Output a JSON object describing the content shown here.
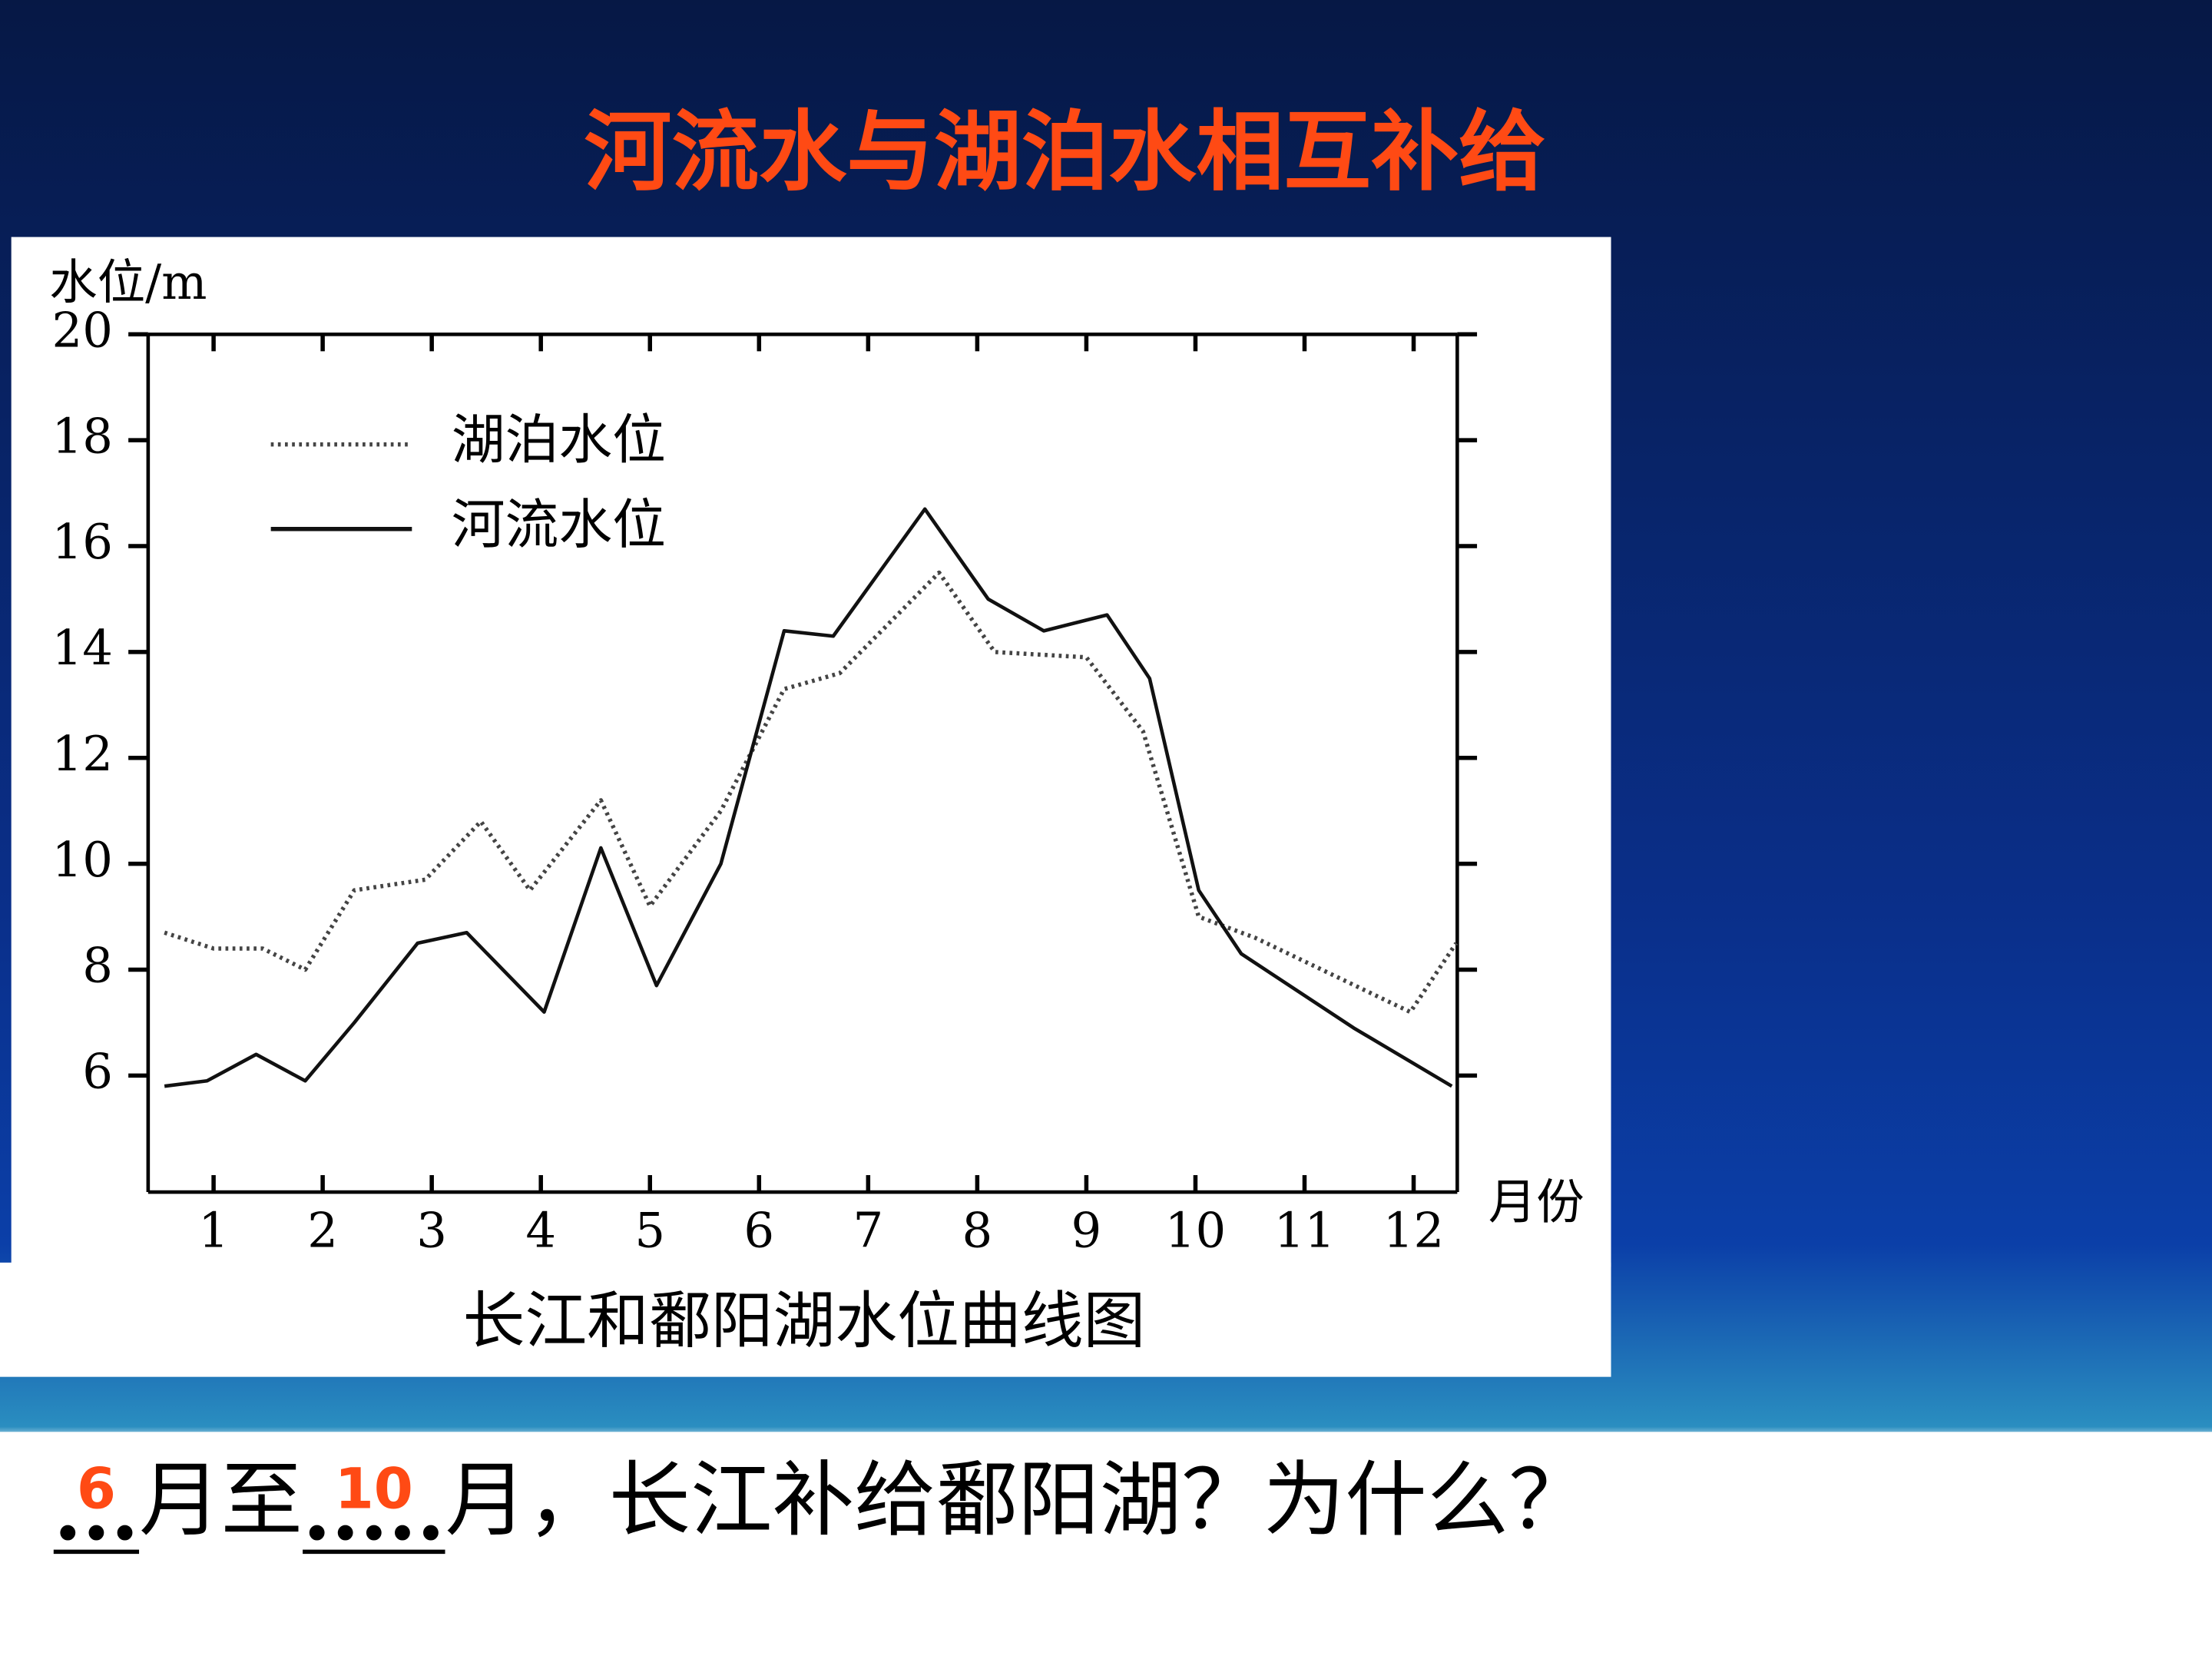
{
  "slide_title": "河流水与湖泊水相互补给",
  "chart_data": {
    "type": "line",
    "ylabel": "水位/m",
    "xlabel": "月份",
    "caption": "长江和鄱阳湖水位曲线图",
    "xlim": [
      0.4,
      12.4
    ],
    "ylim": [
      3.8,
      20
    ],
    "xticks": [
      1,
      2,
      3,
      4,
      5,
      6,
      7,
      8,
      9,
      10,
      11,
      12
    ],
    "yticks": [
      6,
      8,
      10,
      12,
      14,
      16,
      18,
      20
    ],
    "series": [
      {
        "name": "湖泊水位",
        "color": "#444444",
        "style": "dotted",
        "x": [
          0.55,
          1,
          1.45,
          1.84,
          2.29,
          2.94,
          3.45,
          3.9,
          4.55,
          5.0,
          5.65,
          6.23,
          6.74,
          7.65,
          8.16,
          9.0,
          9.52,
          10.03,
          10.55,
          11.97,
          12.39
        ],
        "values": [
          8.7,
          8.4,
          8.4,
          8.0,
          9.5,
          9.7,
          10.8,
          9.5,
          11.2,
          9.2,
          11.0,
          13.3,
          13.6,
          15.5,
          14.0,
          13.9,
          12.5,
          9.0,
          8.6,
          7.2,
          8.5
        ]
      },
      {
        "name": "河流水位",
        "color": "#111111",
        "style": "solid",
        "x": [
          0.55,
          0.94,
          1.39,
          1.84,
          2.29,
          2.87,
          3.32,
          4.03,
          4.55,
          5.06,
          5.65,
          6.23,
          6.68,
          7.52,
          8.1,
          8.61,
          9.19,
          9.58,
          10.03,
          10.42,
          11.45,
          12.35
        ],
        "values": [
          5.8,
          5.9,
          6.4,
          5.9,
          7.0,
          8.5,
          8.7,
          7.2,
          10.3,
          7.7,
          10.0,
          14.4,
          14.3,
          16.7,
          15.0,
          14.4,
          14.7,
          13.5,
          9.5,
          8.3,
          6.9,
          5.8
        ]
      }
    ]
  },
  "question": {
    "blanks": [
      {
        "dots": "...",
        "answer": "6"
      },
      {
        "dots": ".....",
        "answer": "10"
      }
    ],
    "texts": [
      "月至",
      "月，长江补给鄱阳湖？为什么？"
    ]
  }
}
